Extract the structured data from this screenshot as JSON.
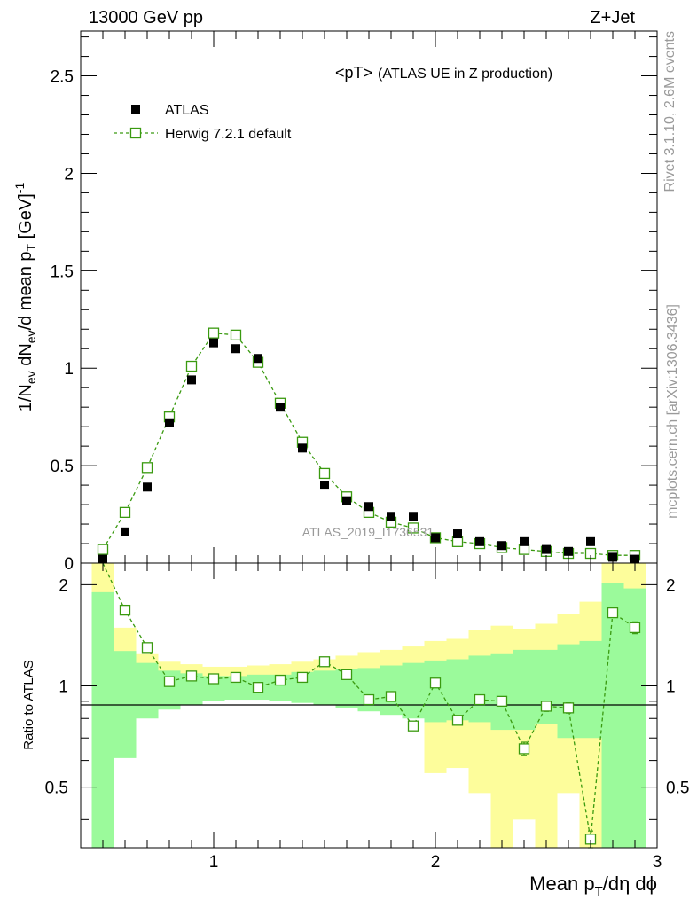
{
  "header": {
    "energy_label": "13000 GeV pp",
    "process_label": "Z+Jet"
  },
  "side_labels": {
    "rivet": "Rivet 3.1.10,  2.6M events",
    "mcplots": "mcplots.cern.ch [arXiv:1306.3436]"
  },
  "colors": {
    "data": "#000000",
    "mc": "#3a9a10",
    "band_inner": "#9bfa9b",
    "band_outer": "#fdfd9b"
  },
  "chart_data": [
    {
      "type": "scatter",
      "title": "<pT>",
      "subtitle": "(ATLAS UE in Z production)",
      "watermark": "ATLAS_2019_I1736531",
      "ylabel": "1/N_ev dN_ev/d mean p_T [GeV]^-1",
      "xlim": [
        0.4,
        3.0
      ],
      "ylim": [
        0,
        2.73
      ],
      "xticks": [
        1,
        2,
        3
      ],
      "yticks": [
        0,
        0.5,
        1,
        1.5,
        2,
        2.5
      ],
      "ytick_labels": [
        "0",
        "0.5",
        "1",
        "1.5",
        "2",
        "2.5"
      ],
      "legend_position": "top-left",
      "series": [
        {
          "name": "ATLAS",
          "marker": "filled-square",
          "x": [
            0.5,
            0.6,
            0.7,
            0.8,
            0.9,
            1.0,
            1.1,
            1.2,
            1.3,
            1.4,
            1.5,
            1.6,
            1.7,
            1.8,
            1.9,
            2.0,
            2.1,
            2.2,
            2.3,
            2.4,
            2.5,
            2.6,
            2.7,
            2.8,
            2.9
          ],
          "values": [
            0.02,
            0.16,
            0.39,
            0.72,
            0.94,
            1.13,
            1.1,
            1.05,
            0.8,
            0.59,
            0.4,
            0.32,
            0.29,
            0.24,
            0.24,
            0.13,
            0.15,
            0.11,
            0.09,
            0.11,
            0.07,
            0.06,
            0.11,
            0.03,
            0.02
          ]
        },
        {
          "name": "Herwig 7.2.1 default",
          "marker": "open-square-dashed-line",
          "x": [
            0.5,
            0.6,
            0.7,
            0.8,
            0.9,
            1.0,
            1.1,
            1.2,
            1.3,
            1.4,
            1.5,
            1.6,
            1.7,
            1.8,
            1.9,
            2.0,
            2.1,
            2.2,
            2.3,
            2.4,
            2.5,
            2.6,
            2.7,
            2.8,
            2.9
          ],
          "values": [
            0.07,
            0.26,
            0.49,
            0.75,
            1.01,
            1.18,
            1.17,
            1.03,
            0.82,
            0.62,
            0.46,
            0.34,
            0.26,
            0.21,
            0.18,
            0.13,
            0.11,
            0.1,
            0.08,
            0.07,
            0.06,
            0.05,
            0.05,
            0.04,
            0.04
          ]
        }
      ]
    },
    {
      "type": "line",
      "ylabel": "Ratio to ATLAS",
      "xlabel": "Mean p_T/dη dϕ",
      "xlim": [
        0.4,
        3.0
      ],
      "ylim": [
        0.33,
        2.32
      ],
      "xticks": [
        1,
        2,
        3
      ],
      "xtick_labels": [
        "1",
        "2",
        "3"
      ],
      "yticks": [
        0.5,
        1,
        2
      ],
      "ytick_labels": [
        "0.5",
        "1",
        "2"
      ],
      "reference_line": 1,
      "bands": {
        "bin_edges": [
          0.45,
          0.55,
          0.65,
          0.75,
          0.85,
          0.95,
          1.05,
          1.15,
          1.25,
          1.35,
          1.45,
          1.55,
          1.65,
          1.75,
          1.85,
          1.95,
          2.05,
          2.15,
          2.25,
          2.35,
          2.45,
          2.55,
          2.65,
          2.75,
          2.85,
          2.95
        ],
        "inner_low": [
          0.33,
          0.61,
          0.8,
          0.85,
          0.88,
          0.9,
          0.91,
          0.91,
          0.9,
          0.89,
          0.88,
          0.86,
          0.84,
          0.82,
          0.8,
          0.78,
          0.79,
          0.78,
          0.74,
          0.74,
          0.77,
          0.7,
          0.7,
          0.33,
          0.33
        ],
        "inner_high": [
          1.9,
          1.27,
          1.17,
          1.11,
          1.09,
          1.07,
          1.07,
          1.08,
          1.08,
          1.1,
          1.11,
          1.12,
          1.13,
          1.15,
          1.17,
          1.19,
          1.2,
          1.23,
          1.25,
          1.28,
          1.28,
          1.33,
          1.36,
          2.02,
          1.95
        ],
        "outer_low": [
          0.33,
          0.74,
          0.87,
          0.91,
          0.93,
          0.94,
          0.95,
          0.95,
          0.94,
          0.94,
          0.92,
          0.91,
          0.9,
          0.89,
          0.88,
          0.55,
          0.57,
          0.48,
          0.33,
          0.4,
          0.33,
          0.48,
          0.33,
          0.33,
          0.33
        ],
        "outer_high": [
          2.32,
          1.49,
          1.25,
          1.18,
          1.16,
          1.14,
          1.14,
          1.15,
          1.16,
          1.18,
          1.2,
          1.23,
          1.26,
          1.28,
          1.31,
          1.36,
          1.38,
          1.47,
          1.51,
          1.48,
          1.53,
          1.64,
          1.78,
          2.32,
          2.32
        ]
      },
      "series": [
        {
          "name": "Herwig 7.2.1 default",
          "x": [
            0.5,
            0.6,
            0.7,
            0.8,
            0.9,
            1.0,
            1.1,
            1.2,
            1.3,
            1.4,
            1.5,
            1.6,
            1.7,
            1.8,
            1.9,
            2.0,
            2.1,
            2.2,
            2.3,
            2.4,
            2.5,
            2.6,
            2.7,
            2.8,
            2.9
          ],
          "values": [
            2.6,
            1.68,
            1.3,
            1.03,
            1.07,
            1.05,
            1.06,
            0.99,
            1.04,
            1.06,
            1.18,
            1.08,
            0.91,
            0.93,
            0.76,
            1.02,
            0.79,
            0.91,
            0.9,
            0.65,
            0.87,
            0.86,
            0.35,
            1.65,
            1.49
          ],
          "errors": [
            0.0,
            0.03,
            0.02,
            0.01,
            0.01,
            0.01,
            0.01,
            0.01,
            0.01,
            0.01,
            0.01,
            0.01,
            0.01,
            0.01,
            0.01,
            0.02,
            0.02,
            0.02,
            0.02,
            0.03,
            0.03,
            0.03,
            0.02,
            0.05,
            0.06
          ]
        }
      ]
    }
  ]
}
